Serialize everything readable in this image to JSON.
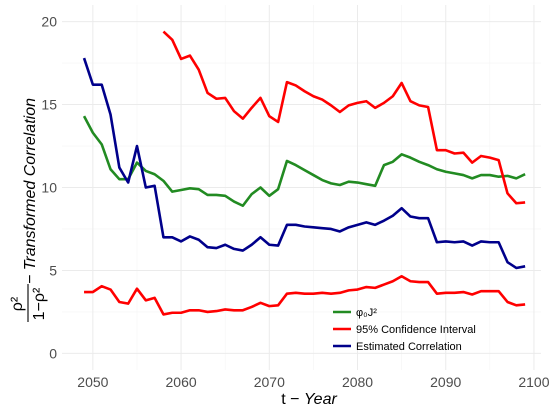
{
  "chart_data": {
    "type": "line",
    "xlabel_prefix": "t − ",
    "xlabel_italic": "Year",
    "ylabel_fraction_numerator": "ρ²",
    "ylabel_fraction_denominator": "1−ρ²",
    "ylabel_suffix": " − Transformed Correlation",
    "xlim": [
      2046.5,
      2100.8
    ],
    "ylim": [
      -1,
      21
    ],
    "x_ticks": [
      2050,
      2060,
      2070,
      2080,
      2090,
      2100
    ],
    "y_ticks": [
      0,
      5,
      10,
      15,
      20
    ],
    "grid": true,
    "legend_position": "bottom-center",
    "legend": [
      {
        "label": "φ₀J²",
        "color": "#228B22"
      },
      {
        "label": "95% Confidence Interval",
        "color": "#FF0000"
      },
      {
        "label": "Estimated Correlation",
        "color": "#00008B"
      }
    ],
    "series": [
      {
        "color": "#228B22",
        "x": [
          2049,
          2050,
          2051,
          2052,
          2053,
          2054,
          2055,
          2056,
          2057,
          2058,
          2059,
          2060,
          2061,
          2062,
          2063,
          2064,
          2065,
          2066,
          2067,
          2068,
          2069,
          2070,
          2071,
          2072,
          2073,
          2074,
          2075,
          2076,
          2077,
          2078,
          2079,
          2080,
          2081,
          2082,
          2083,
          2084,
          2085,
          2086,
          2087,
          2088,
          2089,
          2090,
          2091,
          2092,
          2093,
          2094,
          2095,
          2096,
          2097,
          2098,
          2099
        ],
        "values": [
          14.3,
          13.3,
          12.6,
          11.1,
          10.5,
          10.5,
          11.5,
          11.0,
          10.8,
          10.4,
          9.75,
          9.85,
          9.95,
          9.9,
          9.55,
          9.55,
          9.5,
          9.15,
          8.9,
          9.6,
          10.0,
          9.5,
          9.9,
          11.6,
          11.35,
          11.05,
          10.75,
          10.45,
          10.25,
          10.15,
          10.35,
          10.3,
          10.2,
          10.1,
          11.35,
          11.55,
          12.0,
          11.8,
          11.55,
          11.35,
          11.1,
          10.95,
          10.85,
          10.75,
          10.55,
          10.75,
          10.75,
          10.65,
          10.7,
          10.55,
          10.8
        ]
      },
      {
        "color": "#FF0000",
        "x": [
          2058,
          2059,
          2060,
          2061,
          2062,
          2063,
          2064,
          2065,
          2066,
          2067,
          2068,
          2069,
          2070,
          2071,
          2072,
          2073,
          2074,
          2075,
          2076,
          2077,
          2078,
          2079,
          2080,
          2081,
          2082,
          2083,
          2084,
          2085,
          2086,
          2087,
          2088,
          2089,
          2090,
          2091,
          2092,
          2093,
          2094,
          2095,
          2096,
          2097,
          2098,
          2099
        ],
        "values": [
          19.4,
          18.9,
          17.75,
          17.95,
          17.1,
          15.7,
          15.35,
          15.4,
          14.6,
          14.15,
          14.8,
          15.4,
          14.3,
          13.95,
          16.35,
          16.15,
          15.8,
          15.5,
          15.3,
          14.95,
          14.55,
          14.95,
          15.1,
          15.2,
          14.8,
          15.1,
          15.5,
          16.3,
          15.2,
          14.95,
          14.85,
          12.25,
          12.25,
          12.05,
          12.1,
          11.5,
          11.9,
          11.8,
          11.65,
          9.65,
          9.05,
          9.1
        ]
      },
      {
        "color": "#FF0000",
        "x": [
          2049,
          2050,
          2051,
          2052,
          2053,
          2054,
          2055,
          2056,
          2057,
          2058,
          2059,
          2060,
          2061,
          2062,
          2063,
          2064,
          2065,
          2066,
          2067,
          2068,
          2069,
          2070,
          2071,
          2072,
          2073,
          2074,
          2075,
          2076,
          2077,
          2078,
          2079,
          2080,
          2081,
          2082,
          2083,
          2084,
          2085,
          2086,
          2087,
          2088,
          2089,
          2090,
          2091,
          2092,
          2093,
          2094,
          2095,
          2096,
          2097,
          2098,
          2099
        ],
        "values": [
          3.7,
          3.7,
          4.05,
          3.85,
          3.1,
          3.0,
          3.9,
          3.2,
          3.35,
          2.35,
          2.45,
          2.45,
          2.6,
          2.6,
          2.5,
          2.55,
          2.65,
          2.6,
          2.6,
          2.8,
          3.05,
          2.85,
          2.9,
          3.6,
          3.65,
          3.6,
          3.6,
          3.65,
          3.6,
          3.65,
          3.8,
          3.85,
          4.0,
          3.95,
          4.15,
          4.35,
          4.65,
          4.35,
          4.3,
          4.3,
          3.6,
          3.65,
          3.65,
          3.7,
          3.55,
          3.75,
          3.75,
          3.75,
          3.1,
          2.9,
          2.95
        ]
      },
      {
        "color": "#00008B",
        "x": [
          2049,
          2050,
          2051,
          2052,
          2053,
          2054,
          2055,
          2056,
          2057,
          2058,
          2059,
          2060,
          2061,
          2062,
          2063,
          2064,
          2065,
          2066,
          2067,
          2068,
          2069,
          2070,
          2071,
          2072,
          2073,
          2074,
          2075,
          2076,
          2077,
          2078,
          2079,
          2080,
          2081,
          2082,
          2083,
          2084,
          2085,
          2086,
          2087,
          2088,
          2089,
          2090,
          2091,
          2092,
          2093,
          2094,
          2095,
          2096,
          2097,
          2098,
          2099
        ],
        "values": [
          17.8,
          16.2,
          16.2,
          14.4,
          11.2,
          10.3,
          12.5,
          10.0,
          10.1,
          7.0,
          7.0,
          6.75,
          7.05,
          6.85,
          6.4,
          6.35,
          6.55,
          6.3,
          6.2,
          6.55,
          7.0,
          6.55,
          6.5,
          7.75,
          7.75,
          7.65,
          7.6,
          7.55,
          7.5,
          7.35,
          7.6,
          7.75,
          7.9,
          7.75,
          8.0,
          8.3,
          8.75,
          8.25,
          8.15,
          8.15,
          6.7,
          6.75,
          6.7,
          6.75,
          6.5,
          6.75,
          6.7,
          6.7,
          5.5,
          5.15,
          5.25
        ]
      }
    ]
  }
}
